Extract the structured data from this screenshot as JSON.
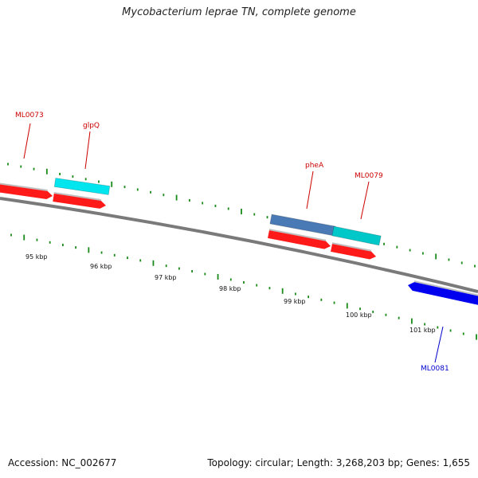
{
  "title": "Mycobacterium leprae TN, complete genome",
  "footer": {
    "accession": "Accession: NC_002677",
    "summary": "Topology: circular; Length: 3,268,203 bp; Genes: 1,655"
  },
  "colors": {
    "backbone": "#808080",
    "tick": "#1a8a1a",
    "label_forward": "#cc0000",
    "label_reverse": "#0000cc"
  },
  "kbp_labels": [
    "95 kbp",
    "96 kbp",
    "97 kbp",
    "98 kbp",
    "99 kbp",
    "100 kbp",
    "101 kbp"
  ],
  "genes": [
    {
      "name": "ML0073",
      "strand": "forward",
      "color": "#ff1a1a"
    },
    {
      "name": "glpQ",
      "strand": "forward",
      "color": "#ff1a1a"
    },
    {
      "name": "pheA",
      "strand": "forward",
      "color": "#ff1a1a"
    },
    {
      "name": "ML0079",
      "strand": "forward",
      "color": "#ff1a1a"
    },
    {
      "name": "ML0081",
      "strand": "reverse",
      "color": "#0000ee"
    }
  ],
  "features": [
    {
      "name": "glpQ-cds",
      "color": "#00e5ee"
    },
    {
      "name": "pheA-cds",
      "color": "#4a7ab5"
    },
    {
      "name": "ML0079-cds",
      "color": "#00c8c8"
    }
  ]
}
